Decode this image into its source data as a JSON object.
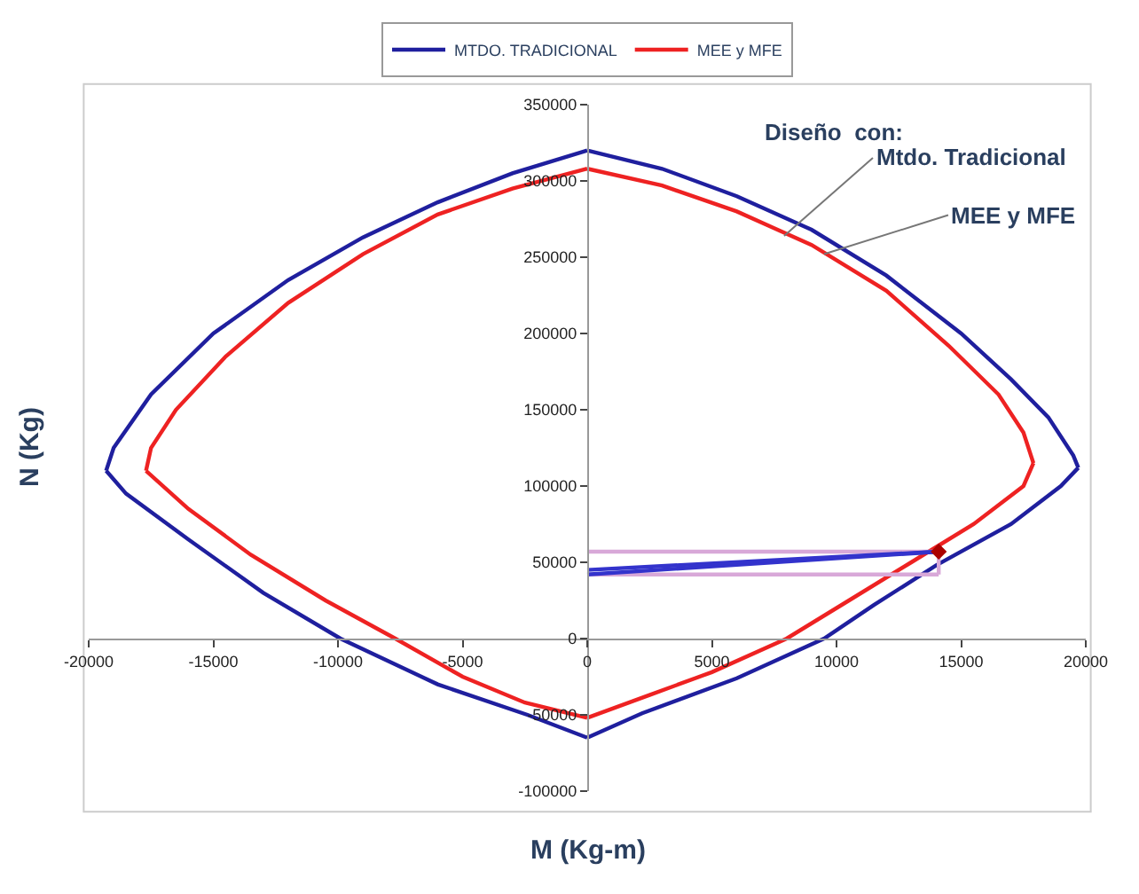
{
  "chart_data": {
    "type": "line",
    "xlabel": "M (Kg-m)",
    "ylabel": "N (Kg)",
    "xlim": [
      -20000,
      20000
    ],
    "xticks": [
      -20000,
      -15000,
      -10000,
      -5000,
      0,
      5000,
      10000,
      15000,
      20000
    ],
    "ylim": [
      -100000,
      350000
    ],
    "yticks": [
      -100000,
      -50000,
      0,
      50000,
      100000,
      150000,
      200000,
      250000,
      300000,
      350000
    ],
    "legend": "top",
    "marker": "none",
    "line_style": "solid",
    "series": [
      {
        "name": "MTDO. TRADICIONAL",
        "color": "#1f1f9e",
        "x": [
          0,
          3000,
          6000,
          9000,
          12000,
          15000,
          17000,
          18500,
          19500,
          19700
        ],
        "values": [
          320000,
          308000,
          290000,
          268000,
          238000,
          200000,
          170000,
          145000,
          120000,
          112000
        ]
      },
      {
        "color": "#1f1f9e",
        "x": [
          19700,
          19000,
          17000,
          14000,
          11500,
          9500,
          6000,
          2200,
          0
        ],
        "values": [
          112000,
          100000,
          75000,
          48000,
          22000,
          0,
          -26000,
          -49000,
          -65000
        ]
      },
      {
        "color": "#1f1f9e",
        "x": [
          0,
          -2400,
          -6000,
          -9900,
          -13000,
          -16000,
          -18500,
          -19300
        ],
        "values": [
          -65000,
          -50000,
          -30000,
          0,
          30000,
          65000,
          95000,
          110000
        ]
      },
      {
        "color": "#1f1f9e",
        "x": [
          -19300,
          -19000,
          -17500,
          -15000,
          -12000,
          -9000,
          -6000,
          -3000,
          0
        ],
        "values": [
          110000,
          125000,
          160000,
          200000,
          235000,
          263000,
          286000,
          305000,
          320000
        ]
      },
      {
        "name": "MEE y MFE",
        "color": "#ee2222",
        "x": [
          0,
          3000,
          6000,
          9000,
          12000,
          14500,
          16500,
          17500,
          17900
        ],
        "values": [
          308000,
          297000,
          280000,
          258000,
          228000,
          192000,
          160000,
          135000,
          115000
        ]
      },
      {
        "color": "#ee2222",
        "x": [
          17900,
          17500,
          15500,
          13000,
          10500,
          8000,
          5000,
          2500,
          0
        ],
        "values": [
          115000,
          100000,
          75000,
          50000,
          25000,
          0,
          -22000,
          -37000,
          -52000
        ]
      },
      {
        "color": "#ee2222",
        "x": [
          0,
          -2500,
          -5000,
          -7700,
          -10500,
          -13500,
          -16000,
          -17700
        ],
        "values": [
          -52000,
          -42000,
          -25000,
          0,
          25000,
          55000,
          85000,
          110000
        ]
      },
      {
        "color": "#ee2222",
        "x": [
          -17700,
          -17500,
          -16500,
          -14500,
          -12000,
          -9000,
          -6000,
          -3000,
          0
        ],
        "values": [
          110000,
          125000,
          150000,
          185000,
          220000,
          252000,
          278000,
          295000,
          308000
        ]
      },
      {
        "color": "#d8a8d8",
        "x": [
          0,
          14100
        ],
        "values": [
          42000,
          42000
        ]
      },
      {
        "color": "#d8a8d8",
        "x": [
          0,
          14100
        ],
        "values": [
          57000,
          57000
        ]
      },
      {
        "color": "#d8a8d8",
        "x": [
          14100,
          14100
        ],
        "values": [
          42000,
          57000
        ]
      },
      {
        "color": "#3333cc",
        "x": [
          0,
          14100
        ],
        "values": [
          42000,
          57000
        ]
      },
      {
        "color": "#3333cc",
        "x": [
          14100,
          0
        ],
        "values": [
          57000,
          45000
        ]
      },
      {
        "type": "scatter",
        "marker": "diamond",
        "color": "#aa0000",
        "x": [
          14100
        ],
        "values": [
          57000
        ]
      }
    ],
    "annotations": [
      "Diseño  con:",
      {
        "text": "Mtdo. Tradicional",
        "x": 7900,
        "y": 264000
      },
      {
        "text": "MEE y MFE",
        "x": 9500,
        "y": 252000
      }
    ]
  }
}
